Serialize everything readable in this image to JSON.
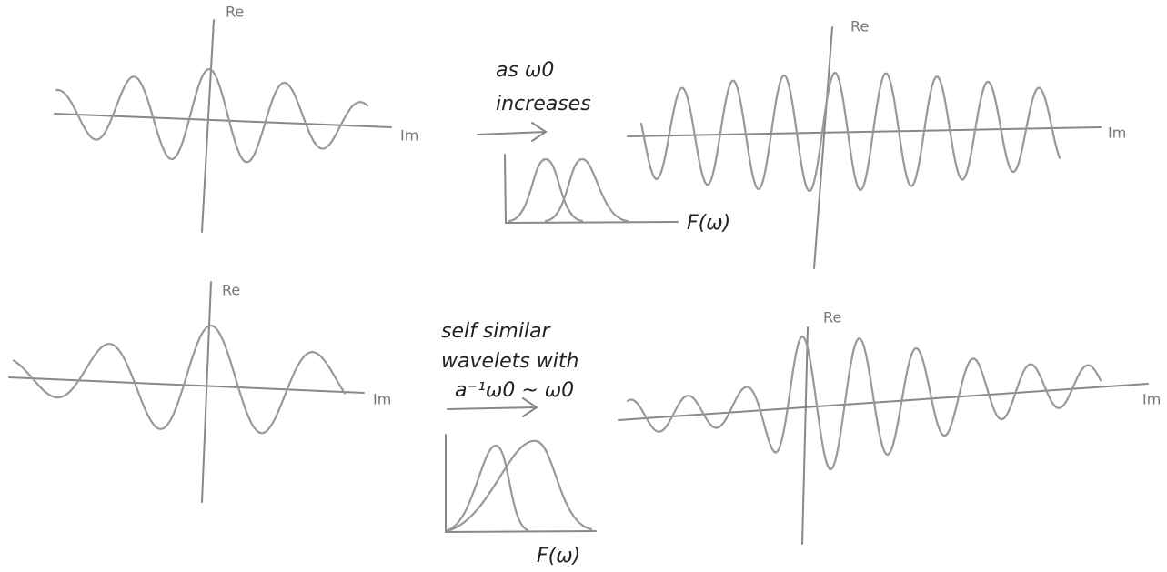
{
  "panels": [
    {
      "re_label": "Re",
      "im_label": "Im"
    },
    {
      "re_label": "Re",
      "im_label": "Im"
    },
    {
      "re_label": "Re",
      "im_label": "Im"
    },
    {
      "re_label": "Re",
      "im_label": "Im"
    }
  ],
  "transitions": [
    {
      "caption": [
        "as ω0",
        "increases"
      ],
      "spectrum_label": "F(ω)"
    },
    {
      "caption": [
        "self similar",
        "wavelets with",
        "a⁻¹ω0 ~ ω0"
      ],
      "spectrum_label": "F(ω)"
    }
  ]
}
